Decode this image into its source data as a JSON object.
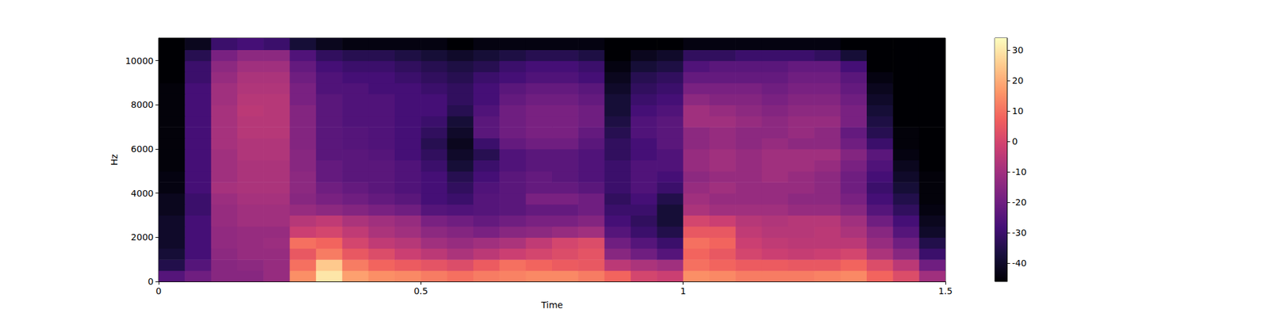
{
  "chart_data": {
    "type": "heatmap",
    "xlabel": "Time",
    "ylabel": "Hz",
    "xlim": [
      0,
      1.5
    ],
    "xticks": [
      0,
      0.5,
      1,
      1.5
    ],
    "ylim": [
      0,
      11025
    ],
    "yticks": [
      0,
      2000,
      4000,
      6000,
      8000,
      10000
    ],
    "x_edges": [
      0,
      0.05,
      0.1,
      0.15,
      0.2,
      0.25,
      0.3,
      0.35,
      0.4,
      0.45,
      0.5,
      0.55,
      0.6,
      0.65,
      0.7,
      0.75,
      0.8,
      0.85,
      0.9,
      0.95,
      1.0,
      1.05,
      1.1,
      1.15,
      1.2,
      1.25,
      1.3,
      1.35,
      1.4,
      1.45,
      1.5
    ],
    "y_edges": [
      0,
      500,
      1000,
      1500,
      2000,
      2500,
      3000,
      3500,
      4000,
      4500,
      5000,
      5500,
      6000,
      6500,
      7000,
      7500,
      8000,
      8500,
      9000,
      9500,
      10000,
      10500,
      11025
    ],
    "cells": [
      [
        -25,
        -20,
        -15,
        -15,
        -12,
        15,
        30,
        18,
        15,
        14,
        12,
        10,
        12,
        13,
        14,
        14,
        12,
        8,
        0,
        -2,
        15,
        14,
        12,
        12,
        12,
        13,
        14,
        8,
        2,
        -10
      ],
      [
        -35,
        -25,
        -15,
        -14,
        -12,
        10,
        25,
        12,
        8,
        6,
        4,
        2,
        6,
        10,
        8,
        6,
        5,
        -5,
        -8,
        -10,
        10,
        8,
        6,
        6,
        5,
        5,
        8,
        2,
        -5,
        -20
      ],
      [
        -38,
        -28,
        -14,
        -12,
        -12,
        5,
        12,
        5,
        2,
        -2,
        -5,
        -8,
        -5,
        -2,
        0,
        2,
        4,
        -15,
        -20,
        -25,
        8,
        5,
        0,
        -2,
        -3,
        -2,
        0,
        -8,
        -15,
        -30
      ],
      [
        -40,
        -28,
        -13,
        -12,
        -11,
        10,
        8,
        0,
        -4,
        -6,
        -10,
        -12,
        -10,
        -8,
        -4,
        0,
        2,
        -20,
        -25,
        -30,
        10,
        8,
        -2,
        -4,
        -5,
        -5,
        -5,
        -12,
        -20,
        -35
      ],
      [
        -40,
        -28,
        -13,
        -12,
        -12,
        -2,
        0,
        -4,
        -8,
        -10,
        -14,
        -16,
        -18,
        -15,
        -14,
        -12,
        -10,
        -25,
        -30,
        -35,
        5,
        5,
        -4,
        -6,
        -6,
        -5,
        -8,
        -15,
        -25,
        -40
      ],
      [
        -40,
        -28,
        -12,
        -10,
        -10,
        -6,
        -4,
        -8,
        -10,
        -12,
        -18,
        -20,
        -22,
        -20,
        -18,
        -18,
        -16,
        -28,
        -32,
        -38,
        0,
        -2,
        -6,
        -7,
        -6,
        -6,
        -10,
        -20,
        -28,
        -42
      ],
      [
        -42,
        -30,
        -12,
        -10,
        -10,
        -12,
        -14,
        -16,
        -18,
        -20,
        -25,
        -26,
        -25,
        -24,
        -22,
        -22,
        -20,
        -30,
        -30,
        -38,
        -8,
        -10,
        -10,
        -10,
        -12,
        -12,
        -15,
        -25,
        -32,
        -44
      ],
      [
        -42,
        -30,
        -11,
        -9,
        -9,
        -15,
        -18,
        -20,
        -22,
        -24,
        -28,
        -30,
        -25,
        -24,
        -18,
        -18,
        -20,
        -32,
        -28,
        -35,
        -10,
        -12,
        -12,
        -12,
        -14,
        -14,
        -18,
        -28,
        -35,
        -45
      ],
      [
        -44,
        -28,
        -9,
        -8,
        -8,
        -14,
        -20,
        -22,
        -24,
        -26,
        -28,
        -32,
        -26,
        -24,
        -22,
        -22,
        -24,
        -30,
        -26,
        -30,
        -12,
        -10,
        -12,
        -12,
        -12,
        -14,
        -20,
        -30,
        -38,
        -45
      ],
      [
        -44,
        -28,
        -10,
        -8,
        -8,
        -14,
        -22,
        -24,
        -24,
        -26,
        -28,
        -34,
        -28,
        -24,
        -22,
        -24,
        -26,
        -30,
        -26,
        -28,
        -14,
        -12,
        -12,
        -10,
        -12,
        -14,
        -20,
        -28,
        -40,
        -45
      ],
      [
        -45,
        -28,
        -10,
        -8,
        -8,
        -15,
        -22,
        -24,
        -24,
        -26,
        -30,
        -38,
        -30,
        -26,
        -24,
        -24,
        -26,
        -30,
        -26,
        -26,
        -12,
        -10,
        -12,
        -10,
        -10,
        -12,
        -18,
        -26,
        -42,
        -46
      ],
      [
        -45,
        -28,
        -10,
        -7,
        -7,
        -15,
        -24,
        -24,
        -25,
        -28,
        -32,
        -40,
        -34,
        -26,
        -24,
        -24,
        -26,
        -32,
        -28,
        -26,
        -12,
        -10,
        -12,
        -10,
        -10,
        -10,
        -16,
        -24,
        -44,
        -46
      ],
      [
        -45,
        -28,
        -9,
        -7,
        -7,
        -16,
        -24,
        -25,
        -26,
        -28,
        -34,
        -42,
        -30,
        -22,
        -20,
        -20,
        -24,
        -32,
        -28,
        -24,
        -14,
        -12,
        -14,
        -12,
        -14,
        -14,
        -20,
        -30,
        -45,
        -46
      ],
      [
        -45,
        -28,
        -9,
        -6,
        -6,
        -16,
        -24,
        -25,
        -26,
        -28,
        -32,
        -40,
        -24,
        -20,
        -18,
        -18,
        -22,
        -34,
        -26,
        -24,
        -14,
        -12,
        -14,
        -14,
        -12,
        -14,
        -22,
        -34,
        -45,
        -46
      ],
      [
        -45,
        -28,
        -9,
        -6,
        -6,
        -16,
        -24,
        -26,
        -26,
        -28,
        -30,
        -38,
        -24,
        -20,
        -18,
        -18,
        -20,
        -36,
        -26,
        -24,
        -10,
        -10,
        -12,
        -14,
        -12,
        -12,
        -18,
        -36,
        -46,
        -46
      ],
      [
        -45,
        -28,
        -9,
        -5,
        -6,
        -16,
        -24,
        -26,
        -26,
        -28,
        -28,
        -34,
        -26,
        -20,
        -18,
        -18,
        -20,
        -38,
        -28,
        -26,
        -10,
        -12,
        -14,
        -16,
        -14,
        -14,
        -18,
        -38,
        -46,
        -46
      ],
      [
        -45,
        -28,
        -10,
        -6,
        -6,
        -18,
        -24,
        -26,
        -26,
        -28,
        -28,
        -32,
        -28,
        -22,
        -20,
        -20,
        -22,
        -38,
        -30,
        -28,
        -14,
        -16,
        -16,
        -18,
        -16,
        -16,
        -20,
        -40,
        -46,
        -46
      ],
      [
        -45,
        -28,
        -10,
        -7,
        -7,
        -18,
        -26,
        -26,
        -28,
        -28,
        -30,
        -32,
        -28,
        -24,
        -22,
        -22,
        -24,
        -40,
        -32,
        -30,
        -18,
        -18,
        -18,
        -20,
        -18,
        -18,
        -22,
        -42,
        -46,
        -46
      ],
      [
        -46,
        -30,
        -12,
        -8,
        -8,
        -20,
        -26,
        -28,
        -28,
        -30,
        -32,
        -34,
        -30,
        -28,
        -26,
        -26,
        -28,
        -42,
        -34,
        -32,
        -22,
        -22,
        -22,
        -22,
        -20,
        -20,
        -24,
        -44,
        -46,
        -46
      ],
      [
        -46,
        -30,
        -14,
        -10,
        -10,
        -22,
        -28,
        -30,
        -30,
        -32,
        -34,
        -36,
        -34,
        -30,
        -28,
        -28,
        -30,
        -44,
        -38,
        -36,
        -26,
        -24,
        -24,
        -24,
        -22,
        -22,
        -28,
        -46,
        -46,
        -46
      ],
      [
        -46,
        -34,
        -18,
        -14,
        -14,
        -26,
        -32,
        -34,
        -34,
        -36,
        -38,
        -40,
        -38,
        -36,
        -34,
        -34,
        -36,
        -46,
        -42,
        -40,
        -32,
        -32,
        -30,
        -30,
        -30,
        -32,
        -38,
        -46,
        -46,
        -46
      ],
      [
        -46,
        -42,
        -30,
        -28,
        -30,
        -38,
        -42,
        -44,
        -44,
        -44,
        -44,
        -46,
        -44,
        -44,
        -44,
        -44,
        -44,
        -46,
        -46,
        -46,
        -44,
        -44,
        -44,
        -44,
        -44,
        -44,
        -46,
        -46,
        -46,
        -46
      ]
    ],
    "colorbar_range": [
      -46,
      34
    ],
    "colorbar_ticks": [
      -40,
      -30,
      -20,
      -10,
      0,
      10,
      20,
      30
    ]
  }
}
